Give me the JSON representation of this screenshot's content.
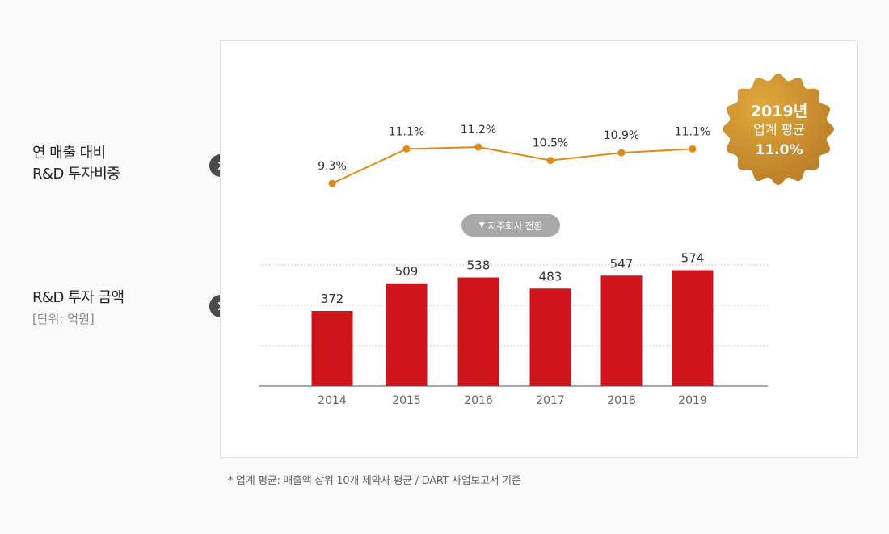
{
  "labels": {
    "ratio_line1": "연 매출 대비",
    "ratio_line2": "R&D 투자비중",
    "amount_title": "R&D 투자 금액",
    "amount_unit": "[단위: 억원]"
  },
  "toggle": {
    "icon": "triangle-down-icon",
    "label": "지주회사 전환"
  },
  "badge": {
    "line1": "2019년",
    "line2": "업계 평균",
    "line3": "11.0%",
    "color_light": "#e0a83c",
    "color_dark": "#b97a26"
  },
  "footnote": "* 업계 평균: 매출액 상위 10개 제약사 평균 / DART 사업보고서 기준",
  "chart_data": [
    {
      "type": "line",
      "x": [
        "2014",
        "2015",
        "2016",
        "2017",
        "2018",
        "2019"
      ],
      "values": [
        9.3,
        11.1,
        11.2,
        10.5,
        10.9,
        11.1
      ],
      "data_labels": [
        "9.3%",
        "11.1%",
        "11.2%",
        "10.5%",
        "10.9%",
        "11.1%"
      ],
      "color": "#e08a14"
    },
    {
      "type": "bar",
      "categories": [
        "2014",
        "2015",
        "2016",
        "2017",
        "2018",
        "2019"
      ],
      "values": [
        372,
        509,
        538,
        483,
        547,
        574
      ],
      "ylim": [
        0,
        600
      ],
      "grid": true,
      "color": "#d0141c"
    }
  ]
}
